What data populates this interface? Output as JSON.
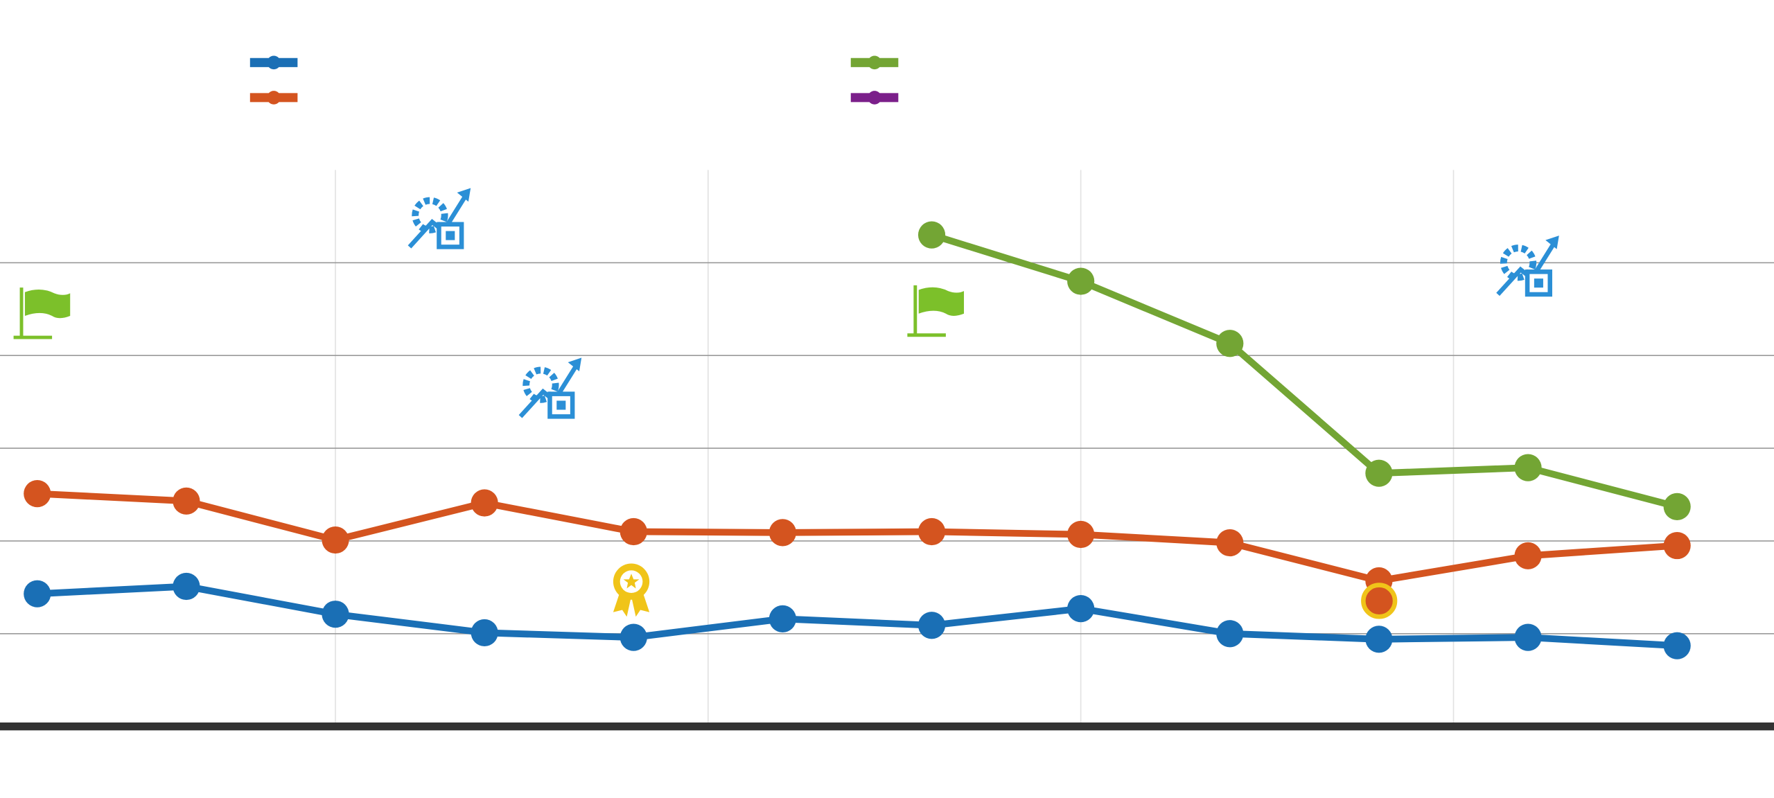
{
  "chart_data": {
    "type": "line",
    "x": [
      0,
      1,
      2,
      3,
      4,
      5,
      6,
      7,
      8,
      9,
      10,
      11
    ],
    "xlim": [
      -0.25,
      11.65
    ],
    "xticks": [
      2,
      4.5,
      7,
      9.5
    ],
    "ylim": [
      0,
      6
    ],
    "yticks": [
      0,
      1,
      2,
      3,
      4,
      5
    ],
    "grid": true,
    "legend": "top",
    "series": [
      {
        "color": "#1a6fb5",
        "values": [
          1.43,
          1.51,
          1.21,
          1.01,
          0.96,
          1.16,
          1.09,
          1.27,
          1.0,
          0.94,
          0.96,
          0.87
        ]
      },
      {
        "color": "#d4541f",
        "values": [
          2.51,
          2.43,
          2.01,
          2.41,
          2.1,
          2.09,
          2.1,
          2.07,
          1.98,
          1.57,
          1.84,
          1.95
        ]
      },
      {
        "color": "#73a534",
        "values": [
          null,
          null,
          null,
          null,
          null,
          null,
          5.3,
          4.8,
          4.13,
          2.73,
          2.79,
          2.37
        ]
      },
      {
        "color": "#7b1f8a",
        "values": [
          null,
          null,
          null,
          null,
          null,
          null,
          null,
          null,
          null,
          null,
          null,
          null
        ]
      }
    ]
  }
}
